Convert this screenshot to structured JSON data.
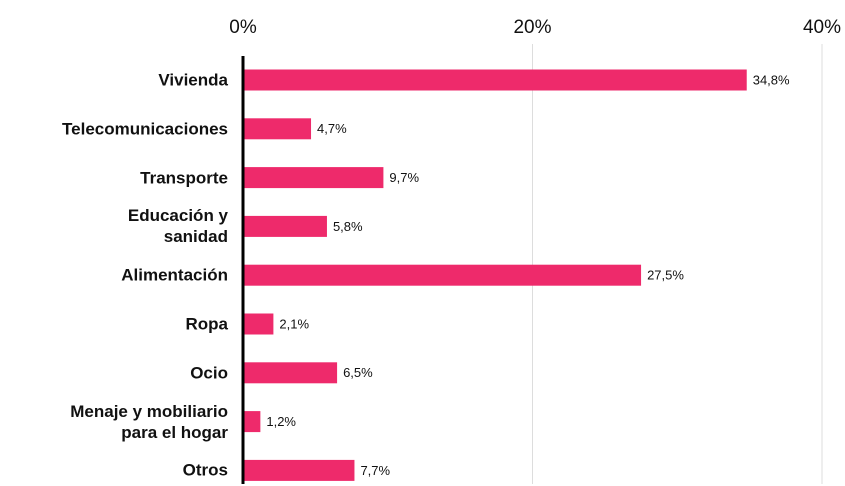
{
  "chart_data": {
    "type": "bar",
    "orientation": "horizontal",
    "categories": [
      "Vivienda",
      "Telecomunicaciones",
      "Transporte",
      "Educación y\nsanidad",
      "Alimentación",
      "Ropa",
      "Ocio",
      "Menaje y mobiliario\npara el hogar",
      "Otros"
    ],
    "values": [
      34.8,
      4.7,
      9.7,
      5.8,
      27.5,
      2.1,
      6.5,
      1.2,
      7.7
    ],
    "value_labels": [
      "34,8%",
      "4,7%",
      "9,7%",
      "5,8%",
      "27,5%",
      "2,1%",
      "6,5%",
      "1,2%",
      "7,7%"
    ],
    "color": "#ee2a6b",
    "xlim": [
      0,
      40
    ],
    "xticks": [
      {
        "value": 0,
        "label": "0%"
      },
      {
        "value": 20,
        "label": "20%"
      },
      {
        "value": 40,
        "label": "40%"
      }
    ],
    "grid": true
  }
}
